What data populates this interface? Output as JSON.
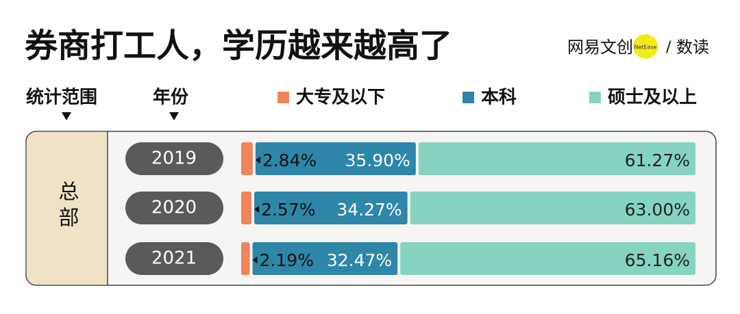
{
  "chart_data": {
    "type": "stacked-bar-100",
    "title": "券商打工人，学历越来越高了",
    "brand": {
      "name": "网易文创",
      "badge": "NetEase",
      "column": "数读"
    },
    "header_labels": [
      "统计范围",
      "年份"
    ],
    "group": "总部",
    "categories": [
      "2019",
      "2020",
      "2021"
    ],
    "series": [
      {
        "name": "大专及以下",
        "color": "#f0845a",
        "values": [
          2.84,
          2.57,
          2.19
        ],
        "value_labels": [
          "2.84%",
          "2.57%",
          "2.19%"
        ]
      },
      {
        "name": "本科",
        "color": "#2e86a8",
        "values": [
          35.9,
          34.27,
          32.47
        ],
        "value_labels": [
          "35.90%",
          "34.27%",
          "32.47%"
        ]
      },
      {
        "name": "硕士及以上",
        "color": "#86d3c1",
        "values": [
          61.27,
          63.0,
          65.16
        ],
        "value_labels": [
          "61.27%",
          "63.00%",
          "65.16%"
        ]
      }
    ]
  }
}
